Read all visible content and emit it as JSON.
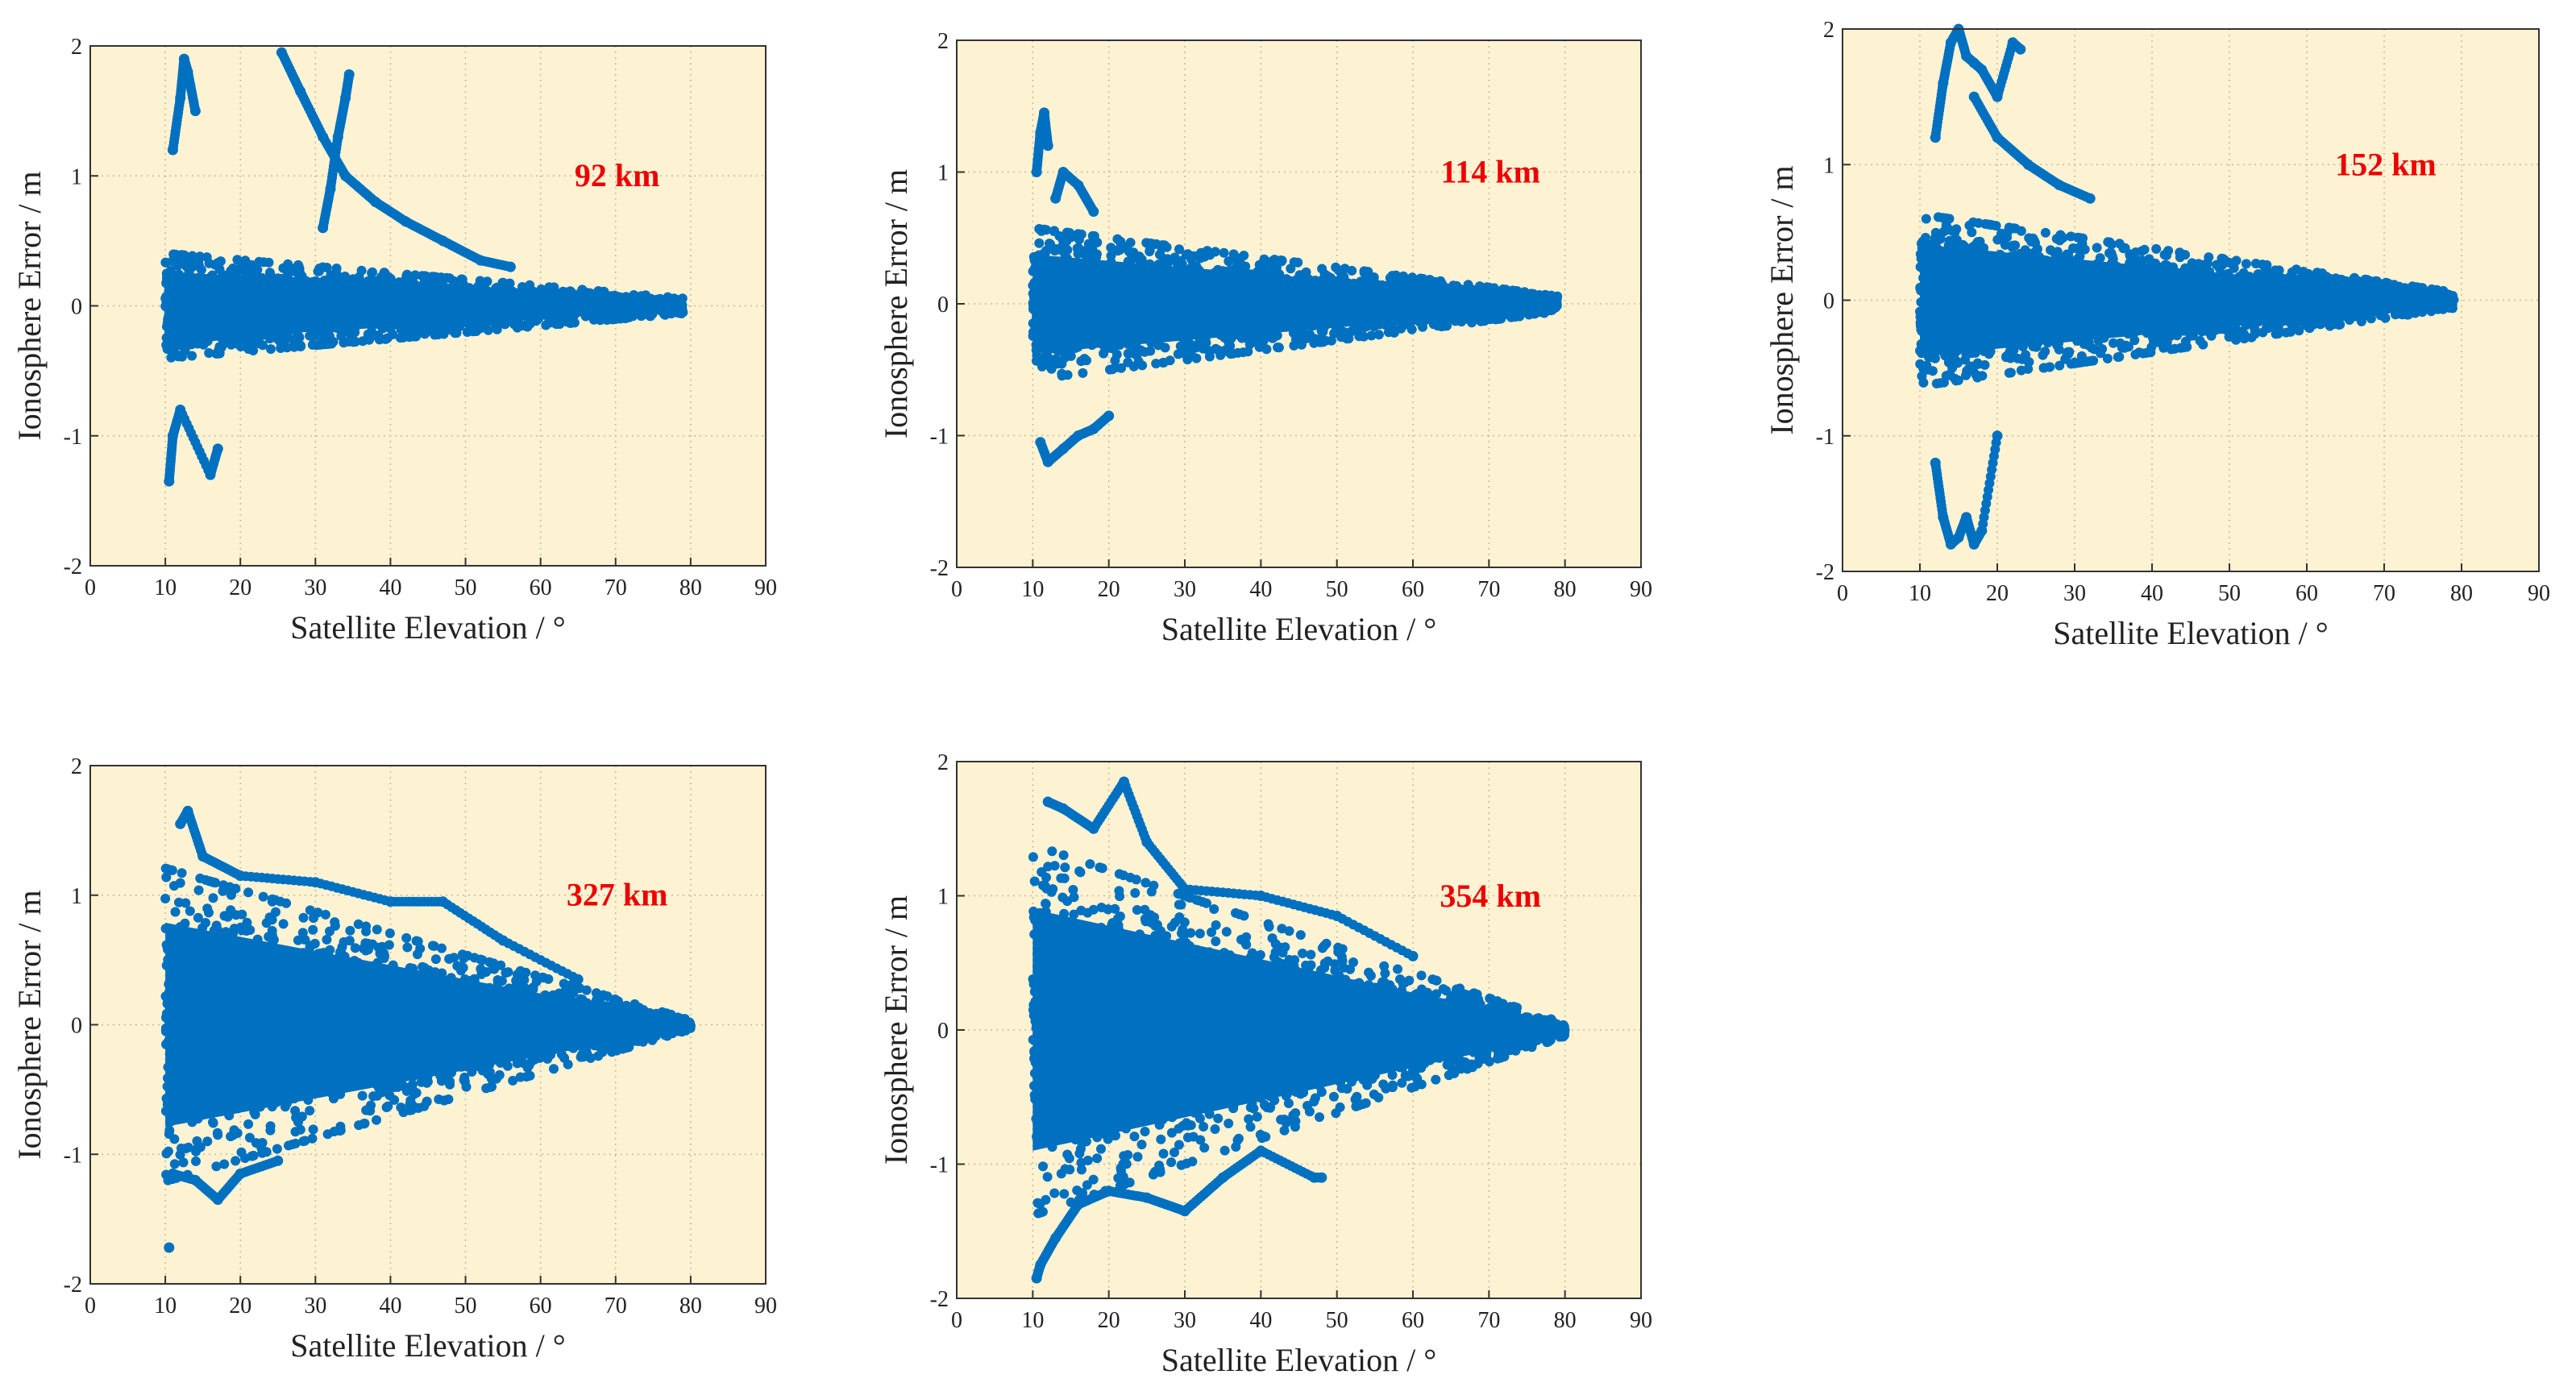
{
  "figure": {
    "description_free": true
  },
  "colors": {
    "plot_background": "#fdf3d3",
    "point": "#0070c0",
    "grid": "#c8b89a",
    "axis": "#333333",
    "annotation": "#ee0000"
  },
  "chart_data": [
    {
      "type": "scatter",
      "title": "",
      "annotation": "92 km",
      "xlabel": "Satellite Elevation / °",
      "ylabel": "Ionosphere Error / m",
      "xlim": [
        0,
        90
      ],
      "ylim": [
        -2,
        2
      ],
      "xticks": [
        "0",
        "10",
        "20",
        "30",
        "40",
        "50",
        "60",
        "70",
        "80",
        "90"
      ],
      "yticks": [
        "-2",
        "-1",
        "0",
        "1",
        "2"
      ],
      "grid": true,
      "spread": {
        "x_range": [
          10,
          79
        ],
        "center_y": 0.0,
        "half_width_at_10": 0.35,
        "half_width_at_80": 0.05
      },
      "features": [
        {
          "name": "arc-high",
          "x": [
            25.5,
            28,
            31,
            34,
            38,
            42,
            47,
            52,
            56
          ],
          "y": [
            1.95,
            1.65,
            1.3,
            1.0,
            0.8,
            0.65,
            0.5,
            0.35,
            0.3
          ]
        },
        {
          "name": "spike-33",
          "x": [
            31,
            32,
            33,
            34,
            34.5
          ],
          "y": [
            0.6,
            0.9,
            1.3,
            1.6,
            1.78
          ]
        },
        {
          "name": "spike-13",
          "x": [
            11,
            12,
            12.5,
            13,
            14
          ],
          "y": [
            1.2,
            1.6,
            1.9,
            1.8,
            1.5
          ]
        },
        {
          "name": "spike-low",
          "x": [
            10.5,
            11,
            12,
            16,
            17
          ],
          "y": [
            -1.35,
            -1.0,
            -0.8,
            -1.3,
            -1.1
          ]
        }
      ]
    },
    {
      "type": "scatter",
      "title": "",
      "annotation": "114 km",
      "xlabel": "Satellite Elevation / °",
      "ylabel": "Ionosphere Error / m",
      "xlim": [
        0,
        90
      ],
      "ylim": [
        -2,
        2
      ],
      "xticks": [
        "0",
        "10",
        "20",
        "30",
        "40",
        "50",
        "60",
        "70",
        "80",
        "90"
      ],
      "yticks": [
        "-2",
        "-1",
        "0",
        "1",
        "2"
      ],
      "grid": true,
      "spread": {
        "x_range": [
          10,
          79
        ],
        "center_y": 0.0,
        "half_width_at_10": 0.5,
        "half_width_at_80": 0.05
      },
      "features": [
        {
          "name": "spike-11",
          "x": [
            10.5,
            11,
            11.5,
            12
          ],
          "y": [
            1.0,
            1.3,
            1.45,
            1.2
          ]
        },
        {
          "name": "dip-low",
          "x": [
            11,
            12,
            14,
            16,
            18,
            20
          ],
          "y": [
            -1.05,
            -1.2,
            -1.1,
            -1.0,
            -0.95,
            -0.85
          ]
        },
        {
          "name": "arc-14",
          "x": [
            13,
            14,
            16,
            18
          ],
          "y": [
            0.8,
            1.0,
            0.9,
            0.7
          ]
        }
      ]
    },
    {
      "type": "scatter",
      "title": "",
      "annotation": "152 km",
      "xlabel": "Satellite Elevation / °",
      "ylabel": "Ionosphere Error / m",
      "xlim": [
        0,
        90
      ],
      "ylim": [
        -2,
        2
      ],
      "xticks": [
        "0",
        "10",
        "20",
        "30",
        "40",
        "50",
        "60",
        "70",
        "80",
        "90"
      ],
      "yticks": [
        "-2",
        "-1",
        "0",
        "1",
        "2"
      ],
      "grid": true,
      "spread": {
        "x_range": [
          10,
          79
        ],
        "center_y": 0.0,
        "half_width_at_10": 0.55,
        "half_width_at_80": 0.05
      },
      "features": [
        {
          "name": "burst-high",
          "x": [
            12,
            13,
            14,
            15,
            16,
            17,
            18,
            20,
            22,
            23
          ],
          "y": [
            1.2,
            1.6,
            1.9,
            2.0,
            1.8,
            1.75,
            1.7,
            1.5,
            1.9,
            1.85
          ]
        },
        {
          "name": "burst-low",
          "x": [
            12,
            13,
            14,
            15,
            16,
            17,
            18,
            20
          ],
          "y": [
            -1.2,
            -1.6,
            -1.8,
            -1.75,
            -1.6,
            -1.8,
            -1.7,
            -1.0
          ]
        },
        {
          "name": "arc-descent",
          "x": [
            17,
            20,
            24,
            28,
            32
          ],
          "y": [
            1.5,
            1.2,
            1.0,
            0.85,
            0.75
          ]
        }
      ]
    },
    {
      "type": "scatter",
      "title": "",
      "annotation": "327 km",
      "xlabel": "Satellite Elevation / °",
      "ylabel": "Ionosphere Error / m",
      "xlim": [
        0,
        90
      ],
      "ylim": [
        -2,
        2
      ],
      "xticks": [
        "0",
        "10",
        "20",
        "30",
        "40",
        "50",
        "60",
        "70",
        "80",
        "90"
      ],
      "yticks": [
        "-2",
        "-1",
        "0",
        "1",
        "2"
      ],
      "grid": true,
      "spread": {
        "x_range": [
          10,
          80
        ],
        "center_y": 0.0,
        "half_width_at_10": 1.05,
        "half_width_at_80": 0.03
      },
      "features": [
        {
          "name": "top-edge",
          "x": [
            12,
            13,
            15,
            20,
            30,
            40,
            47,
            55,
            65
          ],
          "y": [
            1.55,
            1.65,
            1.3,
            1.15,
            1.1,
            0.95,
            0.95,
            0.65,
            0.35
          ]
        },
        {
          "name": "outlier",
          "x": [
            10.5
          ],
          "y": [
            -1.72
          ]
        },
        {
          "name": "bottom-edge",
          "x": [
            11,
            14,
            17,
            20,
            25
          ],
          "y": [
            -1.15,
            -1.2,
            -1.35,
            -1.15,
            -1.05
          ]
        }
      ]
    },
    {
      "type": "scatter",
      "title": "",
      "annotation": "354 km",
      "xlabel": "Satellite Elevation / °",
      "ylabel": "Ionosphere Error / m",
      "xlim": [
        0,
        90
      ],
      "ylim": [
        -2,
        2
      ],
      "xticks": [
        "0",
        "10",
        "20",
        "30",
        "40",
        "50",
        "60",
        "70",
        "80",
        "90"
      ],
      "yticks": [
        "-2",
        "-1",
        "0",
        "1",
        "2"
      ],
      "grid": true,
      "spread": {
        "x_range": [
          10,
          80
        ],
        "center_y": 0.0,
        "half_width_at_10": 1.2,
        "half_width_at_80": 0.04
      },
      "features": [
        {
          "name": "top-edge",
          "x": [
            12,
            14,
            18,
            22,
            25,
            30,
            40,
            50,
            60
          ],
          "y": [
            1.7,
            1.65,
            1.5,
            1.85,
            1.4,
            1.05,
            1.0,
            0.85,
            0.55
          ]
        },
        {
          "name": "bottom-edge",
          "x": [
            10.5,
            11,
            13,
            16,
            20,
            25,
            30,
            35,
            40,
            47,
            48
          ],
          "y": [
            -1.85,
            -1.75,
            -1.55,
            -1.3,
            -1.2,
            -1.25,
            -1.35,
            -1.1,
            -0.9,
            -1.1,
            -1.1
          ]
        }
      ]
    }
  ]
}
